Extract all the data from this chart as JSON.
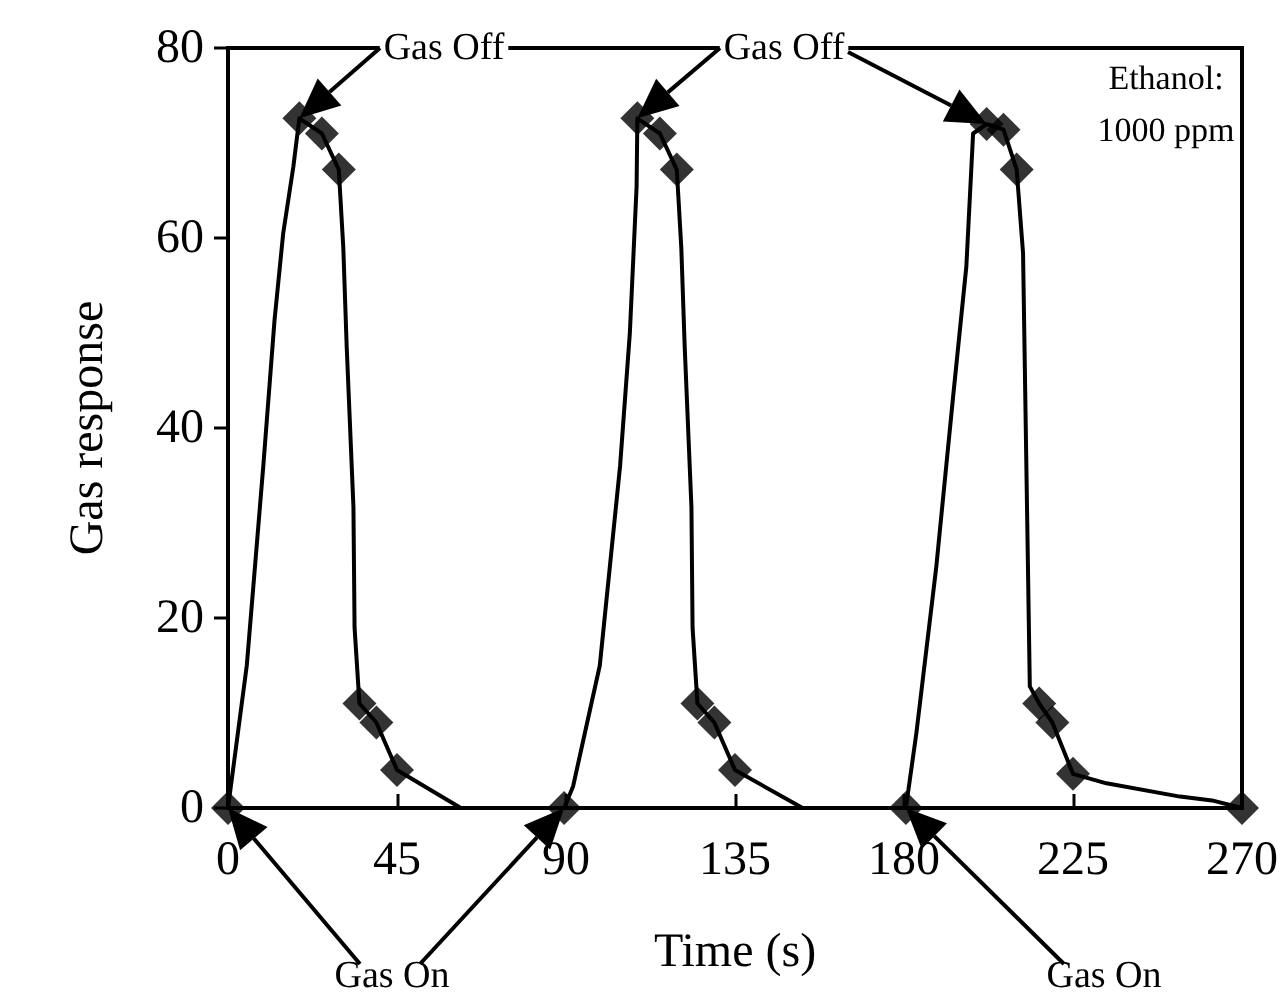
{
  "chart_data": {
    "type": "line",
    "xlabel": "Time (s)",
    "ylabel": "Gas response",
    "xlim": [
      0,
      270
    ],
    "xticks": [
      0,
      45,
      90,
      135,
      180,
      225,
      270
    ],
    "ylim": [
      0,
      80
    ],
    "yticks": [
      0,
      20,
      40,
      60,
      80
    ],
    "series": [
      {
        "type": "line",
        "color": "#000000",
        "marker": "none",
        "x": [
          0,
          5,
          9.4,
          12.4,
          14.7,
          17.4,
          19,
          25,
          29.5,
          30.7,
          31.6,
          33.4,
          33.7,
          35,
          39.5,
          45,
          62,
          75,
          89.5,
          91.9,
          99,
          104.4,
          107,
          108.8,
          109,
          115,
          119.5,
          120.7,
          121.6,
          123.4,
          123.7,
          125,
          129.5,
          135,
          153,
          165,
          180.5,
          183.3,
          188.6,
          193,
          196.6,
          198.4,
          202,
          206.5,
          210,
          211.7,
          213.5,
          216,
          219.5,
          225,
          233.9,
          253.5,
          262,
          270
        ],
        "values": [
          0,
          15,
          36,
          51.4,
          60.5,
          67.5,
          72.6,
          71,
          67.2,
          59,
          48.6,
          31.7,
          19,
          11,
          9,
          4,
          0,
          null,
          0,
          2.3,
          15,
          36,
          50,
          65.4,
          72.6,
          71,
          67.2,
          59,
          48.6,
          31.7,
          19,
          11,
          9,
          4,
          0,
          null,
          0,
          7.9,
          25.4,
          43,
          57,
          71,
          72,
          71.4,
          67.2,
          58.4,
          12.8,
          11,
          9,
          3.6,
          2.6,
          1.2,
          0.8,
          0
        ]
      },
      {
        "type": "scatter",
        "color": "#000000",
        "marker": "diamond",
        "x": [
          0,
          19,
          25,
          29.5,
          35,
          39.5,
          45,
          89.5,
          109,
          115,
          119.5,
          125,
          129.5,
          135,
          180.5,
          202,
          206.5,
          210,
          216,
          219.5,
          225,
          270
        ],
        "values": [
          0,
          72.6,
          71,
          67.2,
          11,
          9,
          4,
          0,
          72.6,
          71,
          67.2,
          11,
          9,
          4,
          0,
          72,
          71.4,
          67.2,
          11,
          9,
          3.6,
          0
        ]
      }
    ],
    "annotations": [
      {
        "text": "Gas Off",
        "x": 19,
        "y": 72.6
      },
      {
        "text": "Gas Off",
        "x": 109,
        "y": 72.6
      },
      "Gas On",
      "Gas On",
      "Ethanol:\n1000 ppm"
    ]
  }
}
